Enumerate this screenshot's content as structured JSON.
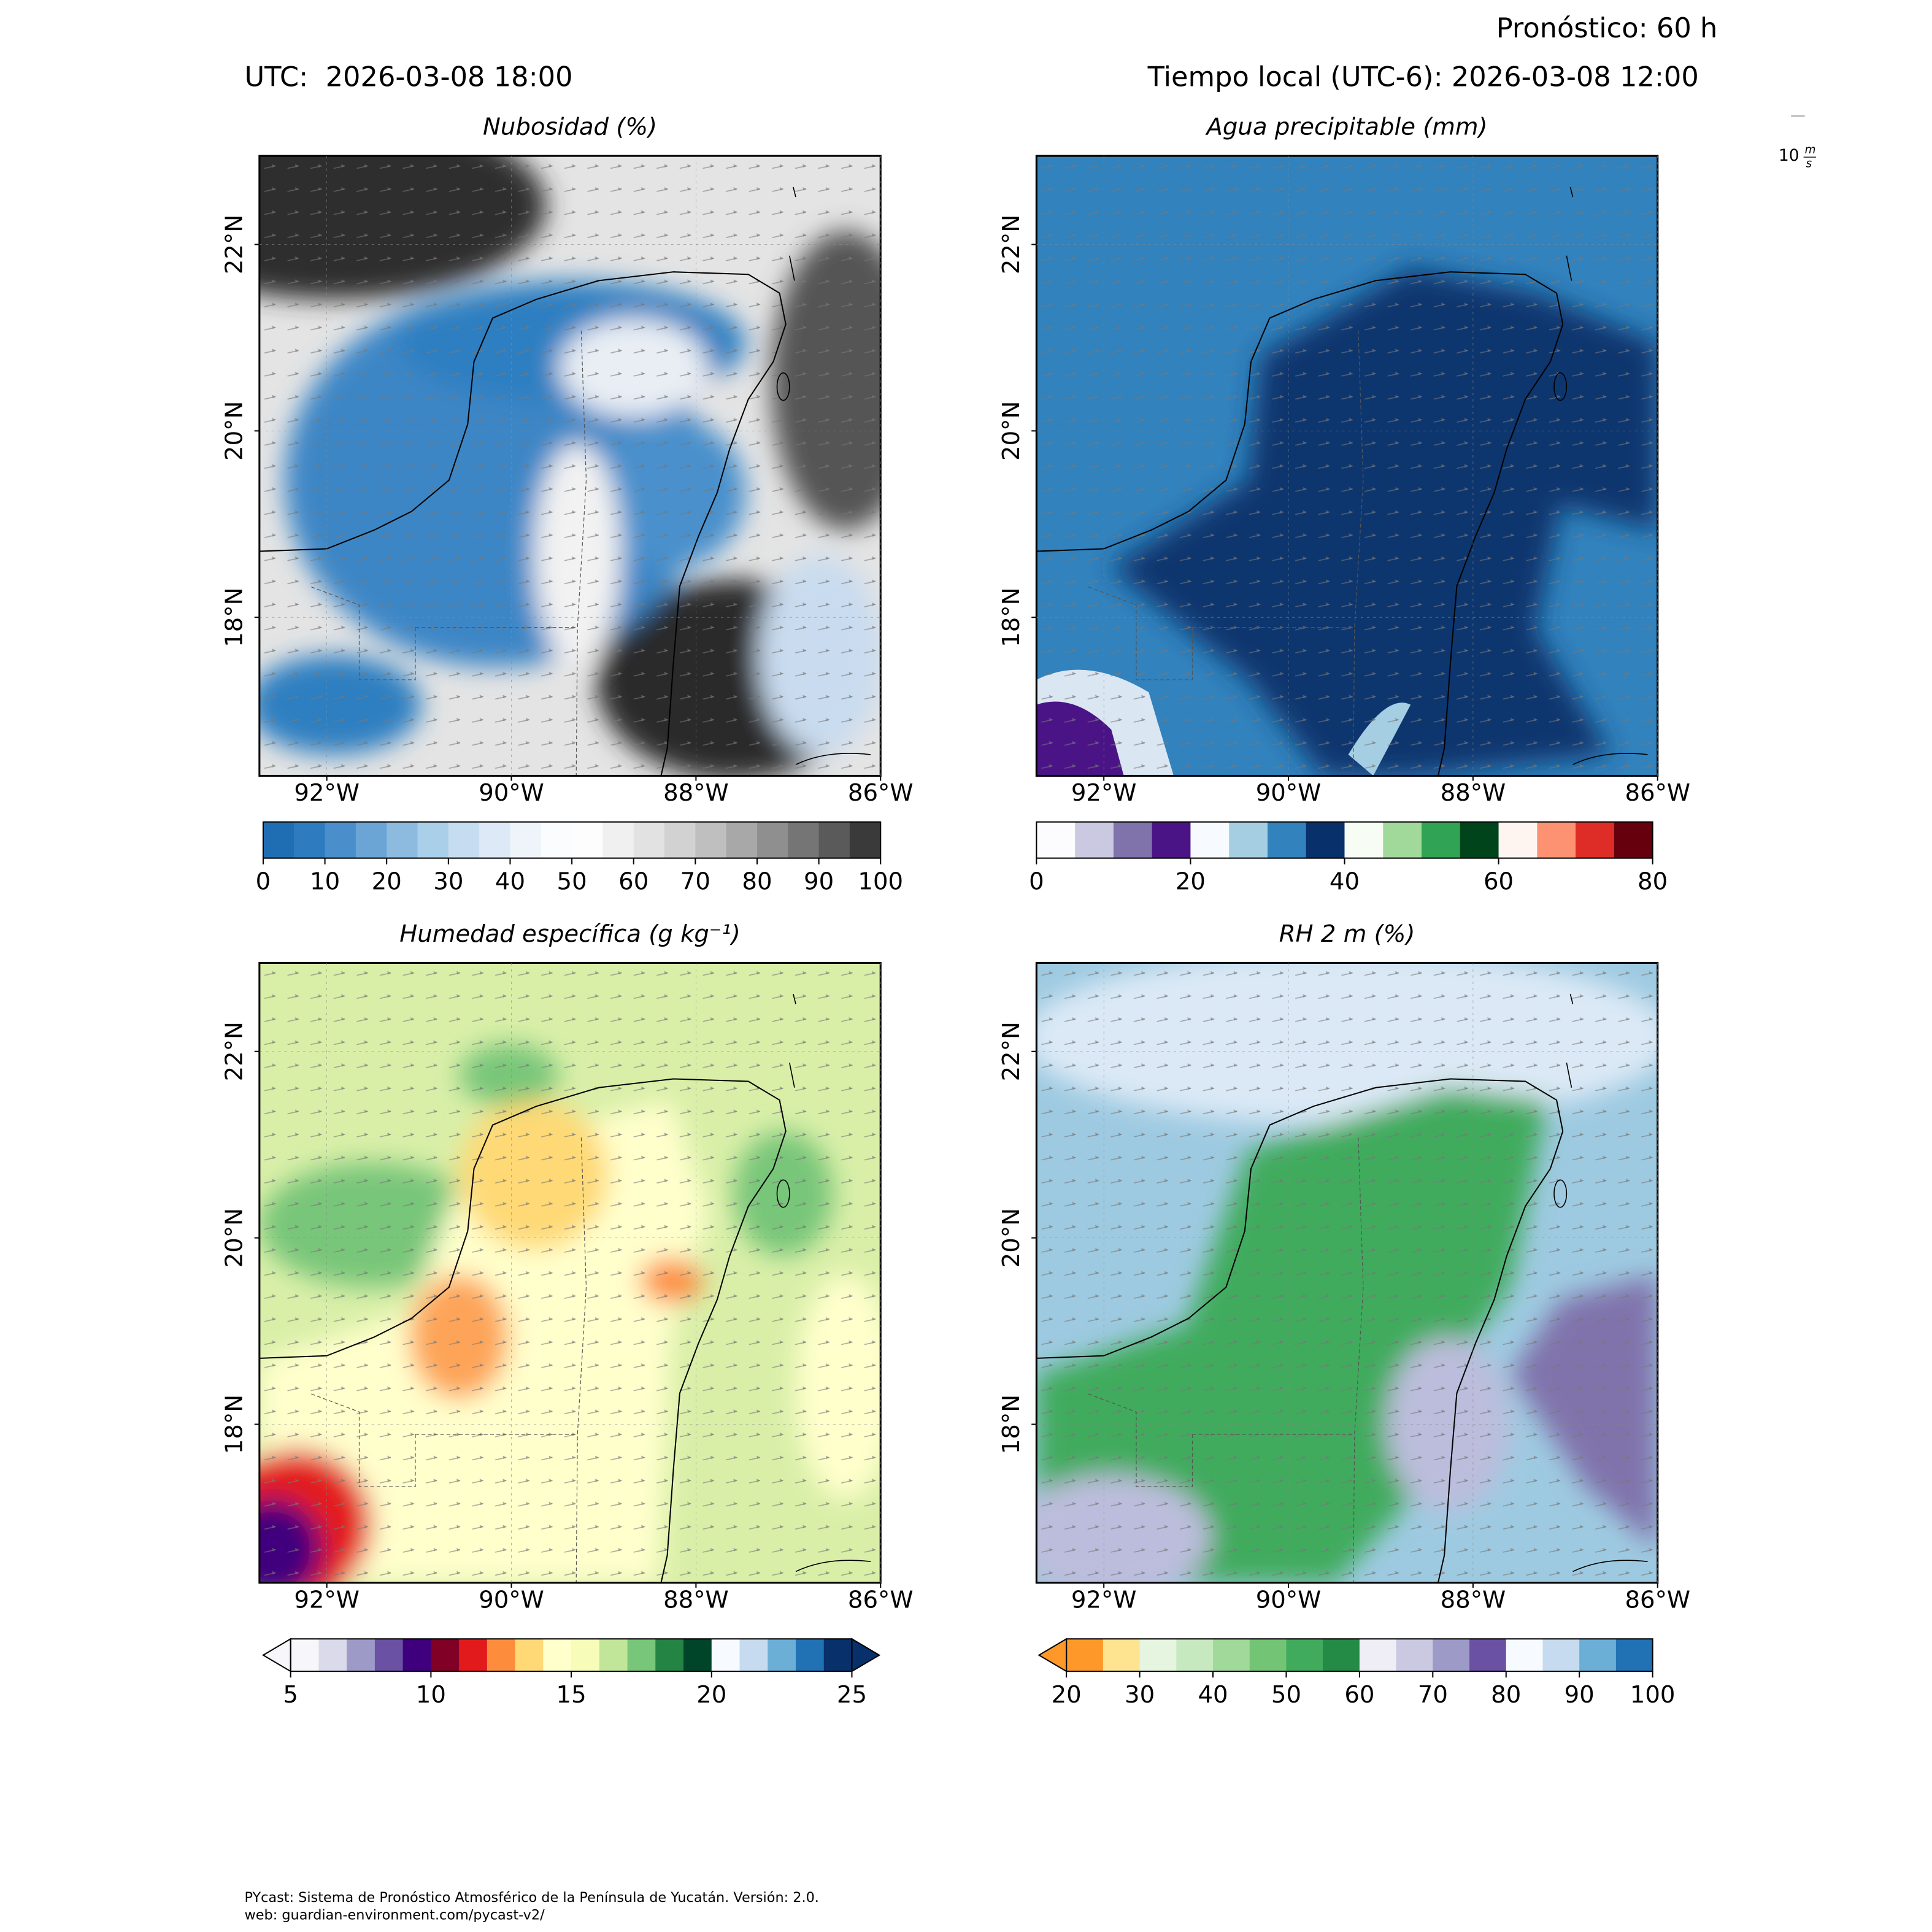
{
  "header": {
    "forecast": "Pronóstico: 60 h",
    "utc": "UTC:  2026-03-08 18:00",
    "local": "Tiempo local (UTC-6): 2026-03-08 12:00"
  },
  "wind_key": {
    "value": "10",
    "unit_top": "m",
    "unit_bottom": "s"
  },
  "panels": [
    {
      "title": "Nubosidad (%)",
      "xlim": [
        -92.73,
        -86
      ],
      "ylim": [
        16.3,
        22.95
      ],
      "xticks": [
        {
          "value": -92,
          "label": "92°W"
        },
        {
          "value": -90,
          "label": "90°W"
        },
        {
          "value": -88,
          "label": "88°W"
        },
        {
          "value": -86,
          "label": "86°W"
        }
      ],
      "yticks": [
        {
          "value": 18,
          "label": "18°N"
        },
        {
          "value": 20,
          "label": "20°N"
        },
        {
          "value": 22,
          "label": "22°N"
        }
      ],
      "colorbar": {
        "lim": [
          0,
          100
        ],
        "ticks": [
          0,
          10,
          20,
          30,
          40,
          50,
          60,
          70,
          80,
          90,
          100
        ],
        "colors": [
          "#1f6eb4",
          "#2e7cbf",
          "#4a8fcb",
          "#6aa5d6",
          "#8dbbe0",
          "#aacfe9",
          "#c6ddf1",
          "#dde9f6",
          "#eef4fa",
          "#fbfcfe",
          "#fdfdfd",
          "#f0f0f0",
          "#e2e2e2",
          "#d2d2d2",
          "#bfbfbf",
          "#a8a8a8",
          "#8f8f8f",
          "#757575",
          "#5a5a5a",
          "#3a3a3a"
        ]
      }
    },
    {
      "title": "Agua precipitable (mm)",
      "xlim": [
        -92.73,
        -86
      ],
      "ylim": [
        16.3,
        22.95
      ],
      "xticks": [
        {
          "value": -92,
          "label": "92°W"
        },
        {
          "value": -90,
          "label": "90°W"
        },
        {
          "value": -88,
          "label": "88°W"
        },
        {
          "value": -86,
          "label": "86°W"
        }
      ],
      "yticks": [
        {
          "value": 18,
          "label": "18°N"
        },
        {
          "value": 20,
          "label": "20°N"
        },
        {
          "value": 22,
          "label": "22°N"
        }
      ],
      "colorbar": {
        "lim": [
          0,
          80
        ],
        "ticks": [
          0,
          20,
          40,
          60,
          80
        ],
        "colors": [
          "#fcfbfd",
          "#cbc9e2",
          "#8073ac",
          "#4a1486",
          "#f7fbff",
          "#a6cee3",
          "#3182bd",
          "#08306b",
          "#f7fcf5",
          "#a1d99b",
          "#31a354",
          "#00441b",
          "#fff5f0",
          "#fc9272",
          "#de2d26",
          "#67000d"
        ]
      }
    },
    {
      "title": "Humedad específica (g kg⁻¹)",
      "xlim": [
        -92.73,
        -86
      ],
      "ylim": [
        16.3,
        22.95
      ],
      "xticks": [
        {
          "value": -92,
          "label": "92°W"
        },
        {
          "value": -90,
          "label": "90°W"
        },
        {
          "value": -88,
          "label": "88°W"
        },
        {
          "value": -86,
          "label": "86°W"
        }
      ],
      "yticks": [
        {
          "value": 18,
          "label": "18°N"
        },
        {
          "value": 20,
          "label": "20°N"
        },
        {
          "value": 22,
          "label": "22°N"
        }
      ],
      "colorbar": {
        "lim": [
          5,
          25
        ],
        "ticks": [
          5,
          10,
          15,
          20,
          25
        ],
        "extend": "both",
        "colors": [
          "#f7f7fb",
          "#dadaeb",
          "#9e9ac8",
          "#6a51a3",
          "#3f007d",
          "#800026",
          "#e31a1c",
          "#fd8d3c",
          "#fed976",
          "#ffffcc",
          "#f7fcb9",
          "#c2e699",
          "#78c679",
          "#238443",
          "#004529",
          "#f7fbff",
          "#c6dbef",
          "#6baed6",
          "#2171b5",
          "#08306b"
        ]
      }
    },
    {
      "title": "RH 2 m (%)",
      "xlim": [
        -92.73,
        -86
      ],
      "ylim": [
        16.3,
        22.95
      ],
      "xticks": [
        {
          "value": -92,
          "label": "92°W"
        },
        {
          "value": -90,
          "label": "90°W"
        },
        {
          "value": -88,
          "label": "88°W"
        },
        {
          "value": -86,
          "label": "86°W"
        }
      ],
      "yticks": [
        {
          "value": 18,
          "label": "18°N"
        },
        {
          "value": 20,
          "label": "20°N"
        },
        {
          "value": 22,
          "label": "22°N"
        }
      ],
      "colorbar": {
        "lim": [
          20,
          100
        ],
        "ticks": [
          20,
          30,
          40,
          50,
          60,
          70,
          80,
          90,
          100
        ],
        "extend": "min",
        "colors": [
          "#fe9929",
          "#fee391",
          "#e5f5e0",
          "#c7e9c0",
          "#a1d99b",
          "#74c476",
          "#41ab5d",
          "#238b45",
          "#efedf5",
          "#cbc9e2",
          "#9e9ac8",
          "#6a51a3",
          "#f7fbff",
          "#c6dbef",
          "#6baed6",
          "#2171b5"
        ]
      }
    }
  ],
  "footer": {
    "line1": "PYcast: Sistema de Pronóstico Atmosférico de la Península de Yucatán. Versión: 2.0.",
    "line2": "web: guardian-environment.com/pycast-v2/"
  }
}
